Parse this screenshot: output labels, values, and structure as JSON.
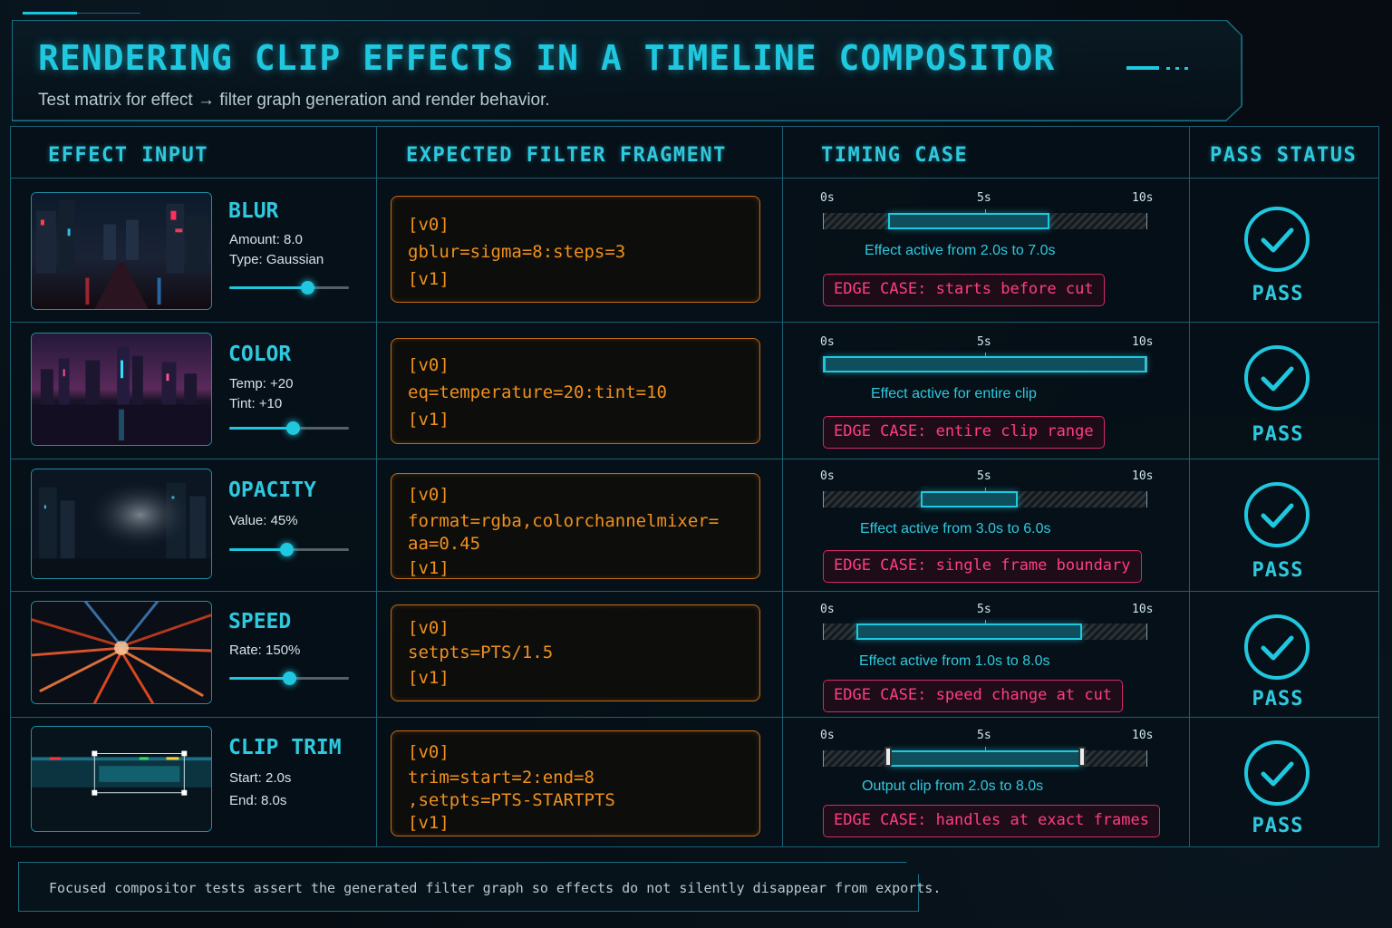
{
  "header": {
    "title": "RENDERING CLIP EFFECTS IN A TIMELINE COMPOSITOR",
    "subtitle": "Test matrix for effect → filter graph generation and render behavior."
  },
  "columns": {
    "effect_input": "EFFECT INPUT",
    "expected_filter": "EXPECTED FILTER FRAGMENT",
    "timing_case": "TIMING CASE",
    "pass_status": "PASS STATUS"
  },
  "timeline_ticks": [
    "0s",
    "5s",
    "10s"
  ],
  "rows": [
    {
      "name": "BLUR",
      "params": [
        "Amount: 8.0",
        "Type: Gaussian"
      ],
      "slider_value": 0.65,
      "code": [
        "[v0]",
        "gblur=sigma=8:steps=3",
        "[v1]"
      ],
      "active_start_s": 2.0,
      "active_end_s": 7.0,
      "caption": "Effect active from 2.0s to 7.0s",
      "edge_case": "EDGE CASE: starts before cut",
      "status": "PASS"
    },
    {
      "name": "COLOR",
      "params": [
        "Temp: +20",
        "Tint: +10"
      ],
      "slider_value": 0.53,
      "code": [
        "[v0]",
        "eq=temperature=20:tint=10",
        "[v1]"
      ],
      "active_start_s": 0.0,
      "active_end_s": 10.0,
      "caption": "Effect active for entire clip",
      "edge_case": "EDGE CASE: entire clip range",
      "status": "PASS"
    },
    {
      "name": "OPACITY",
      "params": [
        "Value: 45%"
      ],
      "slider_value": 0.48,
      "code": [
        "[v0]",
        "format=rgba,colorchannelmixer=",
        "aa=0.45",
        "[v1]"
      ],
      "active_start_s": 3.0,
      "active_end_s": 6.0,
      "caption": "Effect active from 3.0s to 6.0s",
      "edge_case": "EDGE CASE: single frame boundary",
      "status": "PASS"
    },
    {
      "name": "SPEED",
      "params": [
        "Rate: 150%"
      ],
      "slider_value": 0.5,
      "code": [
        "[v0]",
        "setpts=PTS/1.5",
        "[v1]"
      ],
      "active_start_s": 1.0,
      "active_end_s": 8.0,
      "caption": "Effect active from 1.0s to 8.0s",
      "edge_case": "EDGE CASE: speed change at cut",
      "status": "PASS"
    },
    {
      "name": "CLIP TRIM",
      "params": [
        "Start: 2.0s",
        "End: 8.0s"
      ],
      "slider_value": null,
      "code": [
        "[v0]",
        "trim=start=2:end=8",
        ",setpts=PTS-STARTPTS",
        "[v1]"
      ],
      "active_start_s": 2.0,
      "active_end_s": 8.0,
      "caption": "Output clip from 2.0s to 8.0s",
      "edge_case": "EDGE CASE: handles at exact frames",
      "status": "PASS"
    }
  ],
  "footer": {
    "text": "Focused compositor tests assert the generated filter graph so effects do not silently disappear from exports."
  },
  "colors": {
    "accent_cyan": "#1fc8df",
    "code_orange": "#f0901c",
    "edge_pink": "#ff3d86",
    "border": "#1a5f72"
  }
}
